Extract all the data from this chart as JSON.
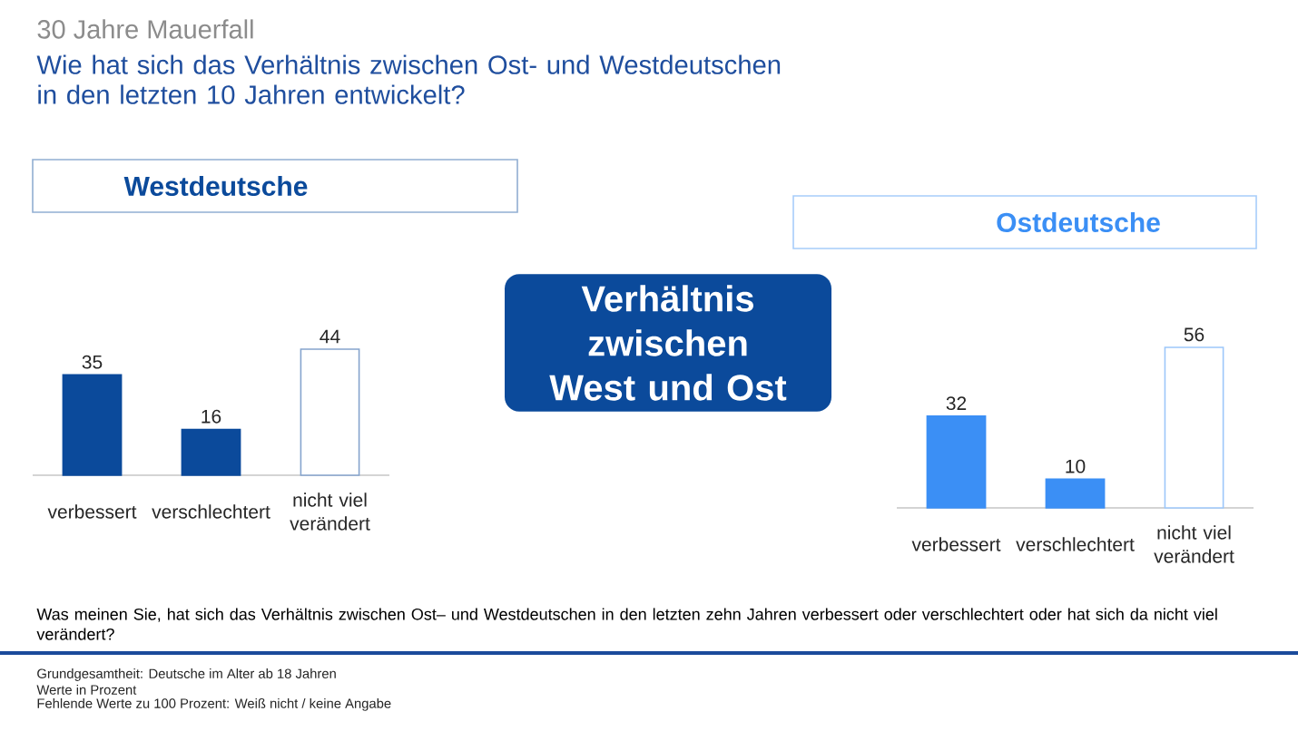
{
  "chart_data": [
    {
      "type": "other",
      "title": "30 Jahre Mauerfall",
      "subtitle": "Wie hat sich das Verhältnis zwischen Ost- und Westdeutschen in den letzten 10 Jahren entwickelt?",
      "annotations": [
        "Verhältnis zwischen West und Ost",
        "Was meinen Sie, hat sich das Verhältnis zwischen Ost– und Westdeutschen in den letzten zehn Jahren verbessert oder verschlechtert oder hat sich da nicht viel verändert?",
        "Grundgesamtheit: Deutsche im Alter ab 18 Jahren",
        "Werte in Prozent",
        "Fehlende Werte zu 100 Prozent: Weiß nicht / keine Angabe"
      ]
    },
    {
      "type": "bar",
      "title": "Westdeutsche",
      "categories": [
        "verbessert",
        "verschlechtert",
        "nicht viel verändert"
      ],
      "values": [
        35,
        16,
        44
      ],
      "color": "#0b4a9b",
      "colors": [
        "#0b4a9b",
        "#0b4a9b",
        "#ffffff"
      ],
      "tick_labels": "x",
      "data_labels": true
    },
    {
      "type": "bar",
      "title": "Ostdeutsche",
      "categories": [
        "verbessert",
        "verschlechtert",
        "nicht viel verändert"
      ],
      "values": [
        32,
        10,
        56
      ],
      "color": "#3b8ff5",
      "colors": [
        "#3b8ff5",
        "#3b8ff5",
        "#ffffff"
      ],
      "tick_labels": "x",
      "data_labels": true
    }
  ]
}
